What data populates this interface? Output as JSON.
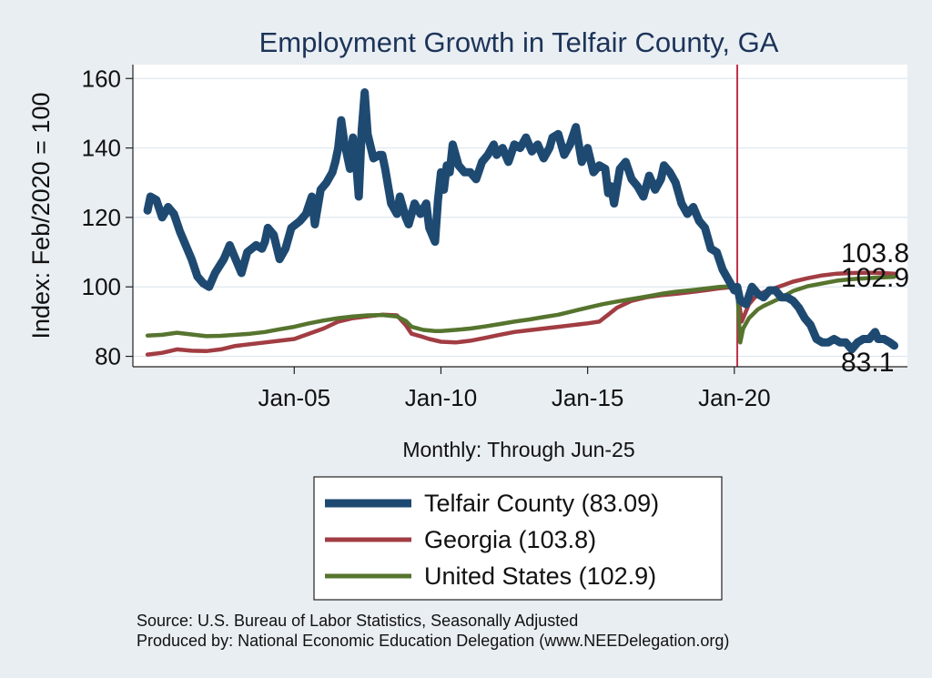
{
  "chart_data": {
    "type": "line",
    "title": "Employment Growth in Telfair  County, GA",
    "xlabel": "Monthly: Through Jun-25",
    "ylabel": "Index: Feb/2020 = 100",
    "ylim": [
      77,
      164
    ],
    "xlim": [
      1999.5,
      2025.9
    ],
    "yticks": [
      80,
      100,
      120,
      140,
      160
    ],
    "xticks": [
      {
        "value": 2005.0,
        "label": "Jan-05"
      },
      {
        "value": 2010.0,
        "label": "Jan-10"
      },
      {
        "value": 2015.0,
        "label": "Jan-15"
      },
      {
        "value": 2020.0,
        "label": "Jan-20"
      }
    ],
    "reference_line": {
      "x": 2020.1,
      "color": "#c0304a"
    },
    "grid": true,
    "series": [
      {
        "name": "Telfair  County",
        "legend": "Telfair  County (83.09)",
        "color": "#1e4a72",
        "end_label": "83.1",
        "points": [
          [
            2000.0,
            122
          ],
          [
            2000.1,
            126
          ],
          [
            2000.3,
            125
          ],
          [
            2000.5,
            120
          ],
          [
            2000.7,
            123
          ],
          [
            2000.9,
            121
          ],
          [
            2001.1,
            116
          ],
          [
            2001.3,
            112
          ],
          [
            2001.5,
            108
          ],
          [
            2001.7,
            103
          ],
          [
            2001.9,
            101
          ],
          [
            2002.1,
            100
          ],
          [
            2002.3,
            104
          ],
          [
            2002.6,
            108
          ],
          [
            2002.8,
            112
          ],
          [
            2003.0,
            108
          ],
          [
            2003.2,
            104
          ],
          [
            2003.4,
            110
          ],
          [
            2003.7,
            112
          ],
          [
            2003.9,
            111
          ],
          [
            2004.0,
            113
          ],
          [
            2004.1,
            117
          ],
          [
            2004.3,
            115
          ],
          [
            2004.5,
            108
          ],
          [
            2004.7,
            111
          ],
          [
            2004.9,
            117
          ],
          [
            2005.2,
            119
          ],
          [
            2005.4,
            121
          ],
          [
            2005.6,
            126
          ],
          [
            2005.7,
            118
          ],
          [
            2005.9,
            128
          ],
          [
            2006.1,
            130
          ],
          [
            2006.3,
            133
          ],
          [
            2006.4,
            136
          ],
          [
            2006.5,
            140
          ],
          [
            2006.6,
            148
          ],
          [
            2006.7,
            142
          ],
          [
            2006.8,
            138
          ],
          [
            2006.9,
            134
          ],
          [
            2007.0,
            143
          ],
          [
            2007.1,
            137
          ],
          [
            2007.2,
            126
          ],
          [
            2007.3,
            145
          ],
          [
            2007.4,
            156
          ],
          [
            2007.5,
            144
          ],
          [
            2007.7,
            137
          ],
          [
            2007.9,
            138
          ],
          [
            2008.0,
            138
          ],
          [
            2008.1,
            134
          ],
          [
            2008.3,
            124
          ],
          [
            2008.5,
            121
          ],
          [
            2008.6,
            126
          ],
          [
            2008.8,
            120
          ],
          [
            2008.9,
            118
          ],
          [
            2009.1,
            124
          ],
          [
            2009.3,
            121
          ],
          [
            2009.5,
            124
          ],
          [
            2009.6,
            117
          ],
          [
            2009.7,
            115
          ],
          [
            2009.8,
            113
          ],
          [
            2009.9,
            125
          ],
          [
            2010.0,
            133
          ],
          [
            2010.1,
            128
          ],
          [
            2010.2,
            135
          ],
          [
            2010.3,
            133
          ],
          [
            2010.4,
            141
          ],
          [
            2010.6,
            135
          ],
          [
            2010.8,
            133
          ],
          [
            2011.0,
            133
          ],
          [
            2011.2,
            131
          ],
          [
            2011.4,
            136
          ],
          [
            2011.6,
            138
          ],
          [
            2011.8,
            141
          ],
          [
            2011.9,
            138
          ],
          [
            2012.1,
            140
          ],
          [
            2012.3,
            136
          ],
          [
            2012.5,
            141
          ],
          [
            2012.7,
            140
          ],
          [
            2012.9,
            143
          ],
          [
            2013.1,
            139
          ],
          [
            2013.3,
            141
          ],
          [
            2013.5,
            137
          ],
          [
            2013.7,
            140
          ],
          [
            2013.8,
            143
          ],
          [
            2014.0,
            144
          ],
          [
            2014.2,
            138
          ],
          [
            2014.4,
            141
          ],
          [
            2014.6,
            146
          ],
          [
            2014.8,
            136
          ],
          [
            2015.0,
            140
          ],
          [
            2015.2,
            133
          ],
          [
            2015.4,
            135
          ],
          [
            2015.6,
            134
          ],
          [
            2015.7,
            127
          ],
          [
            2015.8,
            129
          ],
          [
            2015.9,
            124
          ],
          [
            2016.1,
            134
          ],
          [
            2016.3,
            136
          ],
          [
            2016.5,
            131
          ],
          [
            2016.7,
            129
          ],
          [
            2016.9,
            126
          ],
          [
            2017.1,
            132
          ],
          [
            2017.3,
            128
          ],
          [
            2017.5,
            131
          ],
          [
            2017.6,
            135
          ],
          [
            2017.8,
            133
          ],
          [
            2018.0,
            130
          ],
          [
            2018.2,
            124
          ],
          [
            2018.4,
            121
          ],
          [
            2018.6,
            123
          ],
          [
            2018.8,
            119
          ],
          [
            2019.0,
            117
          ],
          [
            2019.2,
            111
          ],
          [
            2019.4,
            110
          ],
          [
            2019.6,
            105
          ],
          [
            2019.8,
            102
          ],
          [
            2020.0,
            99
          ],
          [
            2020.1,
            100
          ],
          [
            2020.2,
            96
          ],
          [
            2020.4,
            95
          ],
          [
            2020.6,
            100
          ],
          [
            2020.8,
            98
          ],
          [
            2021.0,
            97
          ],
          [
            2021.2,
            99
          ],
          [
            2021.4,
            99
          ],
          [
            2021.6,
            97
          ],
          [
            2021.8,
            97
          ],
          [
            2022.0,
            96
          ],
          [
            2022.2,
            94
          ],
          [
            2022.4,
            91
          ],
          [
            2022.6,
            89
          ],
          [
            2022.8,
            85
          ],
          [
            2023.0,
            84
          ],
          [
            2023.2,
            84
          ],
          [
            2023.4,
            85
          ],
          [
            2023.6,
            84
          ],
          [
            2023.8,
            84
          ],
          [
            2024.0,
            82
          ],
          [
            2024.2,
            84
          ],
          [
            2024.4,
            85
          ],
          [
            2024.6,
            85
          ],
          [
            2024.8,
            87
          ],
          [
            2024.9,
            85
          ],
          [
            2025.1,
            85
          ],
          [
            2025.3,
            84
          ],
          [
            2025.45,
            83.09
          ]
        ]
      },
      {
        "name": "Georgia",
        "legend": "Georgia (103.8)",
        "color": "#a13d43",
        "end_label": "103.8",
        "points": [
          [
            2000.0,
            80.5
          ],
          [
            2000.5,
            81
          ],
          [
            2001.0,
            82
          ],
          [
            2001.5,
            81.6
          ],
          [
            2002.0,
            81.5
          ],
          [
            2002.5,
            82
          ],
          [
            2003.0,
            83
          ],
          [
            2003.5,
            83.5
          ],
          [
            2004.0,
            84
          ],
          [
            2004.5,
            84.5
          ],
          [
            2005.0,
            85
          ],
          [
            2005.5,
            86.5
          ],
          [
            2006.0,
            88
          ],
          [
            2006.5,
            90
          ],
          [
            2007.0,
            91
          ],
          [
            2007.5,
            91.5
          ],
          [
            2008.0,
            92
          ],
          [
            2008.5,
            91.8
          ],
          [
            2008.8,
            89
          ],
          [
            2009.0,
            86.5
          ],
          [
            2009.3,
            85.8
          ],
          [
            2009.6,
            85
          ],
          [
            2010.0,
            84.2
          ],
          [
            2010.5,
            84
          ],
          [
            2011.0,
            84.5
          ],
          [
            2011.5,
            85.3
          ],
          [
            2012.0,
            86.2
          ],
          [
            2012.5,
            87
          ],
          [
            2013.0,
            87.5
          ],
          [
            2013.5,
            88
          ],
          [
            2014.0,
            88.5
          ],
          [
            2014.5,
            89
          ],
          [
            2015.0,
            89.5
          ],
          [
            2015.4,
            90
          ],
          [
            2015.7,
            92
          ],
          [
            2016.0,
            94
          ],
          [
            2016.5,
            96
          ],
          [
            2017.0,
            97
          ],
          [
            2017.5,
            97.6
          ],
          [
            2018.0,
            98
          ],
          [
            2018.5,
            98.5
          ],
          [
            2019.0,
            99
          ],
          [
            2019.5,
            99.6
          ],
          [
            2020.0,
            100
          ],
          [
            2020.1,
            99.5
          ],
          [
            2020.25,
            90
          ],
          [
            2020.35,
            92
          ],
          [
            2020.5,
            95
          ],
          [
            2020.7,
            97
          ],
          [
            2021.0,
            98.5
          ],
          [
            2021.5,
            100
          ],
          [
            2022.0,
            101.5
          ],
          [
            2022.5,
            102.5
          ],
          [
            2023.0,
            103.3
          ],
          [
            2023.5,
            103.8
          ],
          [
            2024.0,
            104
          ],
          [
            2024.5,
            104.1
          ],
          [
            2025.0,
            104
          ],
          [
            2025.45,
            103.8
          ]
        ]
      },
      {
        "name": "United States",
        "legend": "United States (102.9)",
        "color": "#56742e",
        "end_label": "102.9",
        "points": [
          [
            2000.0,
            86
          ],
          [
            2000.5,
            86.2
          ],
          [
            2001.0,
            86.8
          ],
          [
            2001.5,
            86.3
          ],
          [
            2002.0,
            85.8
          ],
          [
            2002.5,
            85.9
          ],
          [
            2003.0,
            86.2
          ],
          [
            2003.5,
            86.5
          ],
          [
            2004.0,
            87
          ],
          [
            2004.5,
            87.8
          ],
          [
            2005.0,
            88.5
          ],
          [
            2005.5,
            89.5
          ],
          [
            2006.0,
            90.3
          ],
          [
            2006.5,
            91
          ],
          [
            2007.0,
            91.5
          ],
          [
            2007.5,
            91.8
          ],
          [
            2008.0,
            91.9
          ],
          [
            2008.5,
            91.5
          ],
          [
            2008.8,
            90.2
          ],
          [
            2009.0,
            88.5
          ],
          [
            2009.4,
            87.6
          ],
          [
            2009.8,
            87.3
          ],
          [
            2010.0,
            87.3
          ],
          [
            2010.5,
            87.6
          ],
          [
            2011.0,
            88
          ],
          [
            2011.5,
            88.6
          ],
          [
            2012.0,
            89.3
          ],
          [
            2012.5,
            90
          ],
          [
            2013.0,
            90.6
          ],
          [
            2013.5,
            91.3
          ],
          [
            2014.0,
            92
          ],
          [
            2014.5,
            93
          ],
          [
            2015.0,
            94
          ],
          [
            2015.5,
            95
          ],
          [
            2016.0,
            95.8
          ],
          [
            2016.5,
            96.5
          ],
          [
            2017.0,
            97.2
          ],
          [
            2017.5,
            98
          ],
          [
            2018.0,
            98.6
          ],
          [
            2018.5,
            99
          ],
          [
            2019.0,
            99.5
          ],
          [
            2019.5,
            100
          ],
          [
            2020.0,
            100.2
          ],
          [
            2020.1,
            99.8
          ],
          [
            2020.2,
            84
          ],
          [
            2020.3,
            88
          ],
          [
            2020.5,
            91
          ],
          [
            2020.8,
            93.5
          ],
          [
            2021.0,
            94.5
          ],
          [
            2021.5,
            96.5
          ],
          [
            2022.0,
            98.8
          ],
          [
            2022.5,
            100.2
          ],
          [
            2023.0,
            101
          ],
          [
            2023.5,
            101.8
          ],
          [
            2024.0,
            102.2
          ],
          [
            2024.5,
            102.5
          ],
          [
            2025.0,
            102.7
          ],
          [
            2025.45,
            102.9
          ]
        ]
      }
    ]
  },
  "source_lines": [
    "Source: U.S. Bureau of Labor Statistics, Seasonally Adjusted",
    "Produced by: National Economic Education Delegation (www.NEEDelegation.org)"
  ]
}
